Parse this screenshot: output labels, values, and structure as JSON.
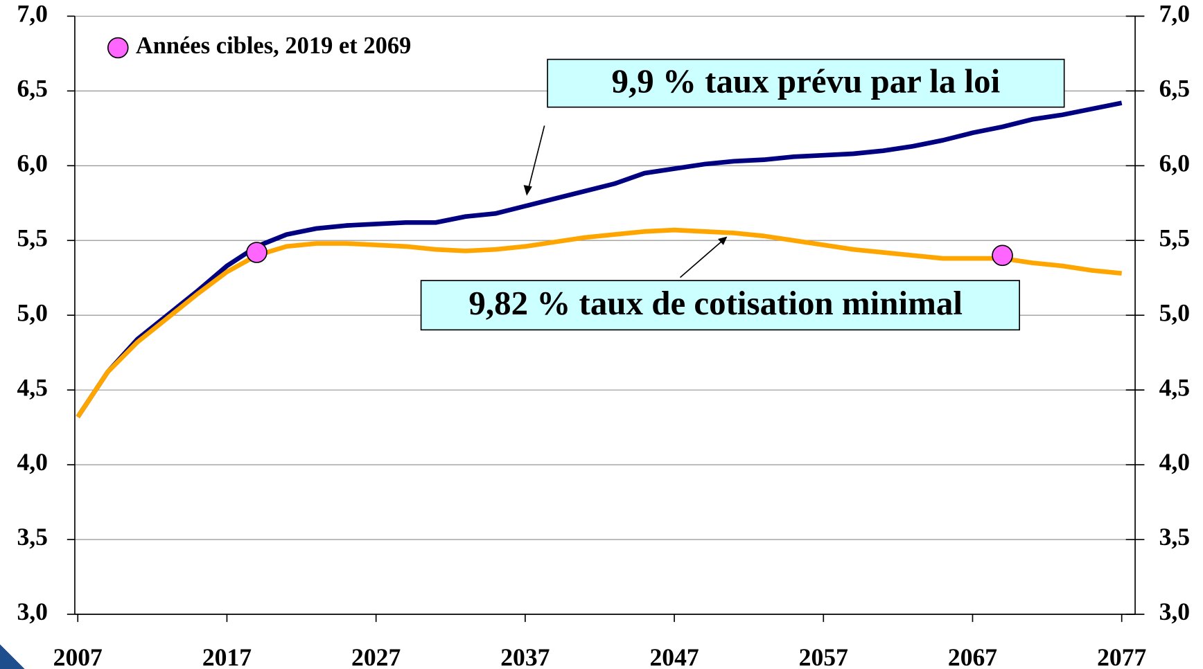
{
  "chart_data": {
    "type": "line",
    "x": [
      2007,
      2008,
      2009,
      2011,
      2013,
      2015,
      2017,
      2019,
      2021,
      2023,
      2025,
      2027,
      2029,
      2031,
      2033,
      2035,
      2037,
      2039,
      2041,
      2043,
      2045,
      2047,
      2049,
      2051,
      2053,
      2055,
      2057,
      2059,
      2061,
      2063,
      2065,
      2067,
      2069,
      2071,
      2073,
      2075,
      2077
    ],
    "series": [
      {
        "name": "9,9 % taux prévu par la loi",
        "color": "#000080",
        "values": [
          4.32,
          4.47,
          4.62,
          4.84,
          5.0,
          5.16,
          5.33,
          5.46,
          5.54,
          5.58,
          5.6,
          5.61,
          5.62,
          5.62,
          5.66,
          5.68,
          5.73,
          5.78,
          5.83,
          5.88,
          5.95,
          5.98,
          6.01,
          6.03,
          6.04,
          6.06,
          6.07,
          6.08,
          6.1,
          6.13,
          6.17,
          6.22,
          6.26,
          6.31,
          6.34,
          6.38,
          6.42
        ]
      },
      {
        "name": "9,82 % taux de cotisation minimal",
        "color": "#ffa500",
        "values": [
          4.32,
          4.47,
          4.62,
          4.82,
          4.98,
          5.14,
          5.29,
          5.4,
          5.46,
          5.48,
          5.48,
          5.47,
          5.46,
          5.44,
          5.43,
          5.44,
          5.46,
          5.49,
          5.52,
          5.54,
          5.56,
          5.57,
          5.56,
          5.55,
          5.53,
          5.5,
          5.47,
          5.44,
          5.42,
          5.4,
          5.38,
          5.38,
          5.38,
          5.35,
          5.33,
          5.3,
          5.28
        ]
      }
    ],
    "markers": {
      "name": "Années cibles, 2019 et 2069",
      "color": "#ff66ff",
      "x": [
        2019,
        2069
      ],
      "values": [
        5.42,
        5.4
      ]
    },
    "xlim": [
      2006.8,
      2077.9
    ],
    "xticks": [
      2007,
      2017,
      2027,
      2037,
      2047,
      2057,
      2067,
      2077
    ],
    "ylim": [
      3.0,
      7.0
    ],
    "yticks": [
      {
        "value": 3.0,
        "label": "3,0"
      },
      {
        "value": 3.5,
        "label": "3,5"
      },
      {
        "value": 4.0,
        "label": "4,0"
      },
      {
        "value": 4.5,
        "label": "4,5"
      },
      {
        "value": 5.0,
        "label": "5,0"
      },
      {
        "value": 5.5,
        "label": "5,5"
      },
      {
        "value": 6.0,
        "label": "6,0"
      },
      {
        "value": 6.5,
        "label": "6,5"
      },
      {
        "value": 7.0,
        "label": "7,0"
      }
    ],
    "y2lim": [
      3.0,
      7.0
    ],
    "y2ticks": [
      {
        "value": 3.0,
        "label": "3,0"
      },
      {
        "value": 3.5,
        "label": "3,5"
      },
      {
        "value": 4.0,
        "label": "4,0"
      },
      {
        "value": 4.5,
        "label": "4,5"
      },
      {
        "value": 5.0,
        "label": "5,0"
      },
      {
        "value": 5.5,
        "label": "5,5"
      },
      {
        "value": 6.0,
        "label": "6,0"
      },
      {
        "value": 6.5,
        "label": "6,5"
      },
      {
        "value": 7.0,
        "label": "7,0"
      }
    ],
    "grid": true
  }
}
